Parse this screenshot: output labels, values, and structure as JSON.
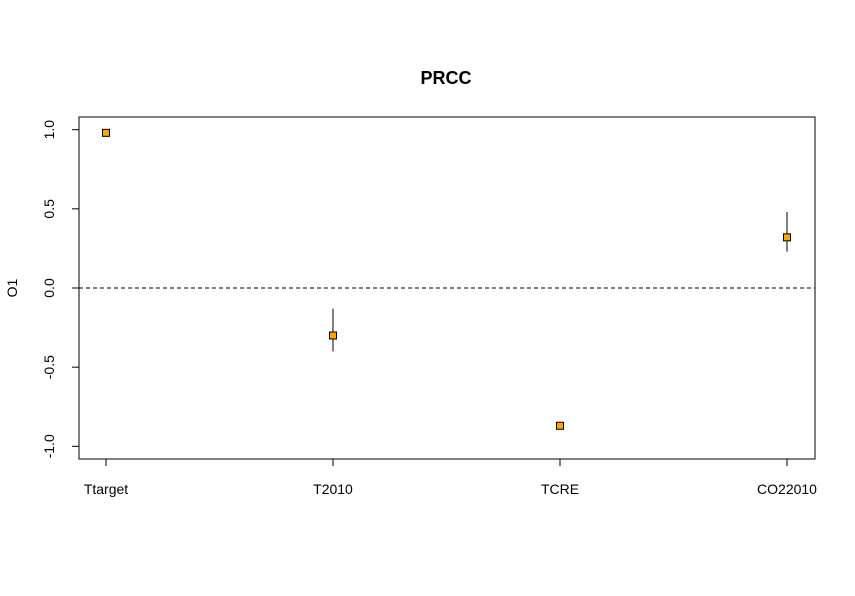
{
  "chart_data": {
    "type": "scatter",
    "title": "PRCC",
    "xlabel": "",
    "ylabel": "O1",
    "categories": [
      "Ttarget",
      "T2010",
      "TCRE",
      "CO22010"
    ],
    "series": [
      {
        "values": [
          0.98,
          -0.3,
          -0.87,
          0.32
        ],
        "lower": [
          0.97,
          -0.4,
          -0.89,
          0.23
        ],
        "upper": [
          0.99,
          -0.13,
          -0.85,
          0.48
        ]
      }
    ],
    "ylim": [
      -1.08,
      1.08
    ],
    "yticks": [
      1.0,
      0.5,
      0.0,
      -0.5,
      -1.0
    ],
    "ytick_labels": [
      "1.0",
      "0.5",
      "0.0",
      "-0.5",
      "-1.0"
    ],
    "reference_line": 0.0,
    "grid": false,
    "point_color": "#FFA500",
    "point_outline": "#000000"
  }
}
